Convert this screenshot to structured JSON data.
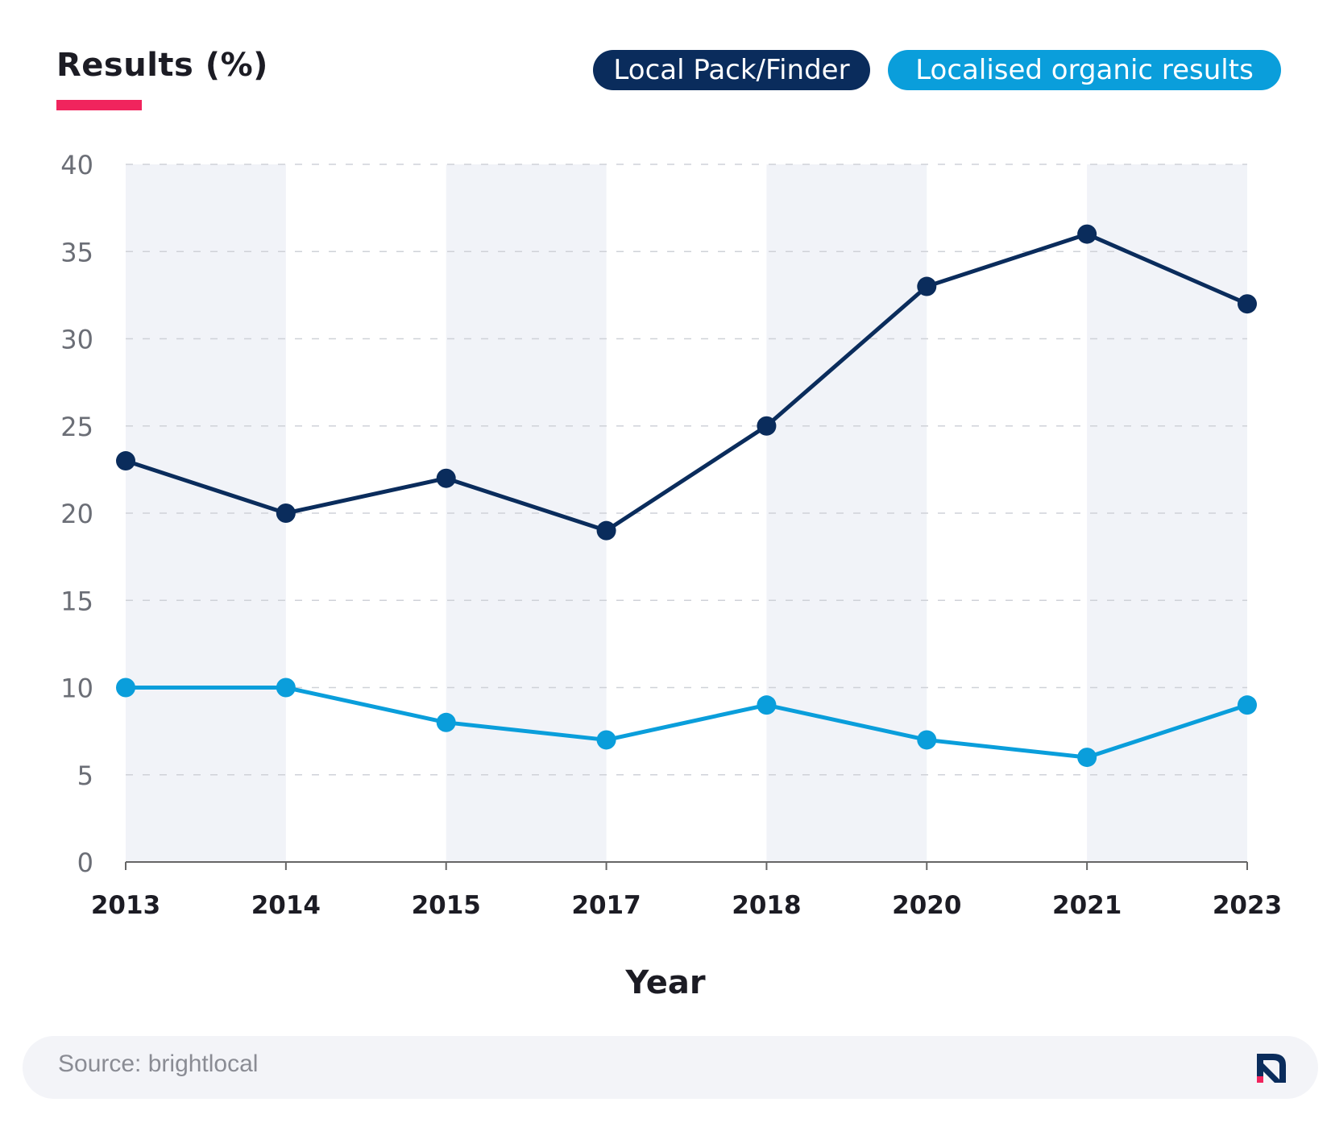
{
  "chart_data": {
    "type": "line",
    "title": "Results (%)",
    "xlabel": "Year",
    "ylabel": "",
    "categories": [
      "2013",
      "2014",
      "2015",
      "2017",
      "2018",
      "2020",
      "2021",
      "2023"
    ],
    "ylim": [
      0,
      40
    ],
    "yticks": [
      0,
      5,
      10,
      15,
      20,
      25,
      30,
      35,
      40
    ],
    "grid": true,
    "legend_placement": "top-right",
    "series": [
      {
        "name": "Local Pack/Finder",
        "color": "#0a2c5c",
        "values": [
          23,
          20,
          22,
          19,
          25,
          33,
          36,
          32
        ]
      },
      {
        "name": "Localised organic results",
        "color": "#0a9edb",
        "values": [
          10,
          10,
          8,
          7,
          9,
          7,
          6,
          9
        ]
      }
    ]
  },
  "colors": {
    "accent_underline": "#f0245d",
    "band": "#f1f3f8",
    "grid": "#cfd2d8",
    "axis": "#666666"
  },
  "source": {
    "text": "Source: brightlocal",
    "logo_icon": "brightlocal-logo-icon"
  }
}
